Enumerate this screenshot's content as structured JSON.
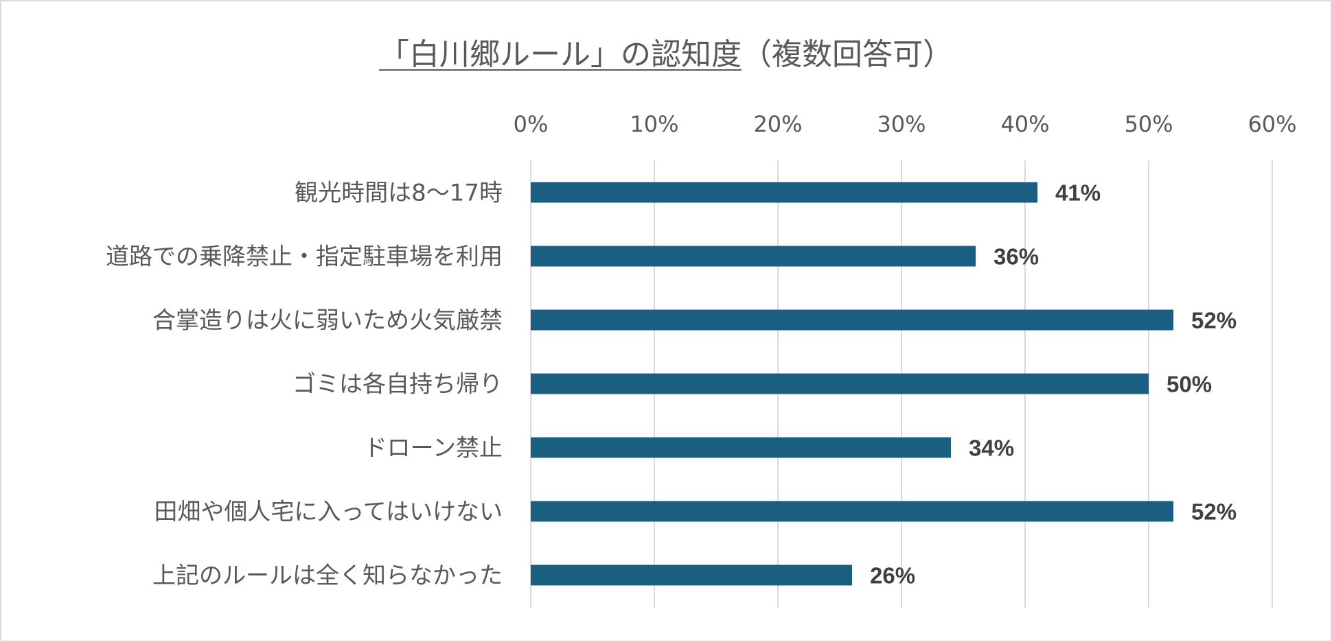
{
  "chart_data": {
    "type": "bar",
    "orientation": "horizontal",
    "title": {
      "underlined_part": "「白川郷ルール」の認知度",
      "rest": "（複数回答可）"
    },
    "categories": [
      "観光時間は8〜17時",
      "道路での乗降禁止・指定駐車場を利用",
      "合掌造りは火に弱いため火気厳禁",
      "ゴミは各自持ち帰り",
      "ドローン禁止",
      "田畑や個人宅に入ってはいけない",
      "上記のルールは全く知らなかった"
    ],
    "values": [
      41,
      36,
      52,
      50,
      34,
      52,
      26
    ],
    "value_labels": [
      "41%",
      "36%",
      "52%",
      "50%",
      "34%",
      "52%",
      "26%"
    ],
    "x_ticks": [
      "0%",
      "10%",
      "20%",
      "30%",
      "40%",
      "50%",
      "60%"
    ],
    "xlim": [
      0,
      60
    ],
    "x_axis_position": "top",
    "grid": true,
    "legend": "none",
    "bar_color": "#1a5f82",
    "grid_color": "#d9d9d9",
    "text_color": "#595959",
    "label_color": "#404040"
  }
}
